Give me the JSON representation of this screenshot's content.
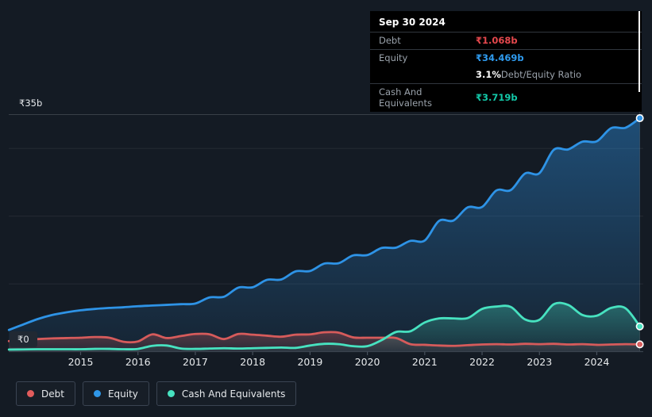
{
  "y_axis": {
    "top_label": "₹35b",
    "zero_label": "₹0"
  },
  "x_axis": {
    "years": [
      "2015",
      "2016",
      "2017",
      "2018",
      "2019",
      "2020",
      "2021",
      "2022",
      "2023",
      "2024"
    ]
  },
  "tooltip": {
    "date": "Sep 30 2024",
    "debt_label": "Debt",
    "debt_value": "₹1.068b",
    "debt_color": "#e5484d",
    "equity_label": "Equity",
    "equity_value": "₹34.469b",
    "equity_color": "#2f9bef",
    "ratio_value": "3.1%",
    "ratio_color": "#ffffff",
    "ratio_label": "Debt/Equity Ratio",
    "cash_label": "Cash And Equivalents",
    "cash_value": "₹3.719b",
    "cash_color": "#13c8a8"
  },
  "legend": [
    {
      "label": "Debt",
      "color": "#e25c5c"
    },
    {
      "label": "Equity",
      "color": "#2f97e8"
    },
    {
      "label": "Cash And Equivalents",
      "color": "#47e2c0"
    }
  ],
  "chart_data": {
    "type": "area",
    "unit": "₹ billions",
    "x_range": [
      2013.75,
      2024.75
    ],
    "ylim": [
      0,
      35
    ],
    "gridline_values": [
      10,
      20,
      30,
      35
    ],
    "grid": true,
    "legend_position": "bottom-left",
    "x": [
      2013.75,
      2014.0,
      2014.25,
      2014.5,
      2014.75,
      2015.0,
      2015.25,
      2015.5,
      2015.75,
      2016.0,
      2016.25,
      2016.5,
      2016.75,
      2017.0,
      2017.25,
      2017.5,
      2017.75,
      2018.0,
      2018.25,
      2018.5,
      2018.75,
      2019.0,
      2019.25,
      2019.5,
      2019.75,
      2020.0,
      2020.25,
      2020.5,
      2020.75,
      2021.0,
      2021.25,
      2021.5,
      2021.75,
      2022.0,
      2022.25,
      2022.5,
      2022.75,
      2023.0,
      2023.25,
      2023.5,
      2023.75,
      2024.0,
      2024.25,
      2024.5,
      2024.75
    ],
    "series": [
      {
        "name": "Equity",
        "key": "equity",
        "color": "#2e93e6",
        "values": [
          3.2,
          4.0,
          4.8,
          5.4,
          5.8,
          6.1,
          6.3,
          6.45,
          6.55,
          6.7,
          6.8,
          6.9,
          7.0,
          7.1,
          8.0,
          8.1,
          9.45,
          9.5,
          10.6,
          10.65,
          11.85,
          11.9,
          13.0,
          13.05,
          14.2,
          14.25,
          15.3,
          15.35,
          16.35,
          16.4,
          19.3,
          19.35,
          21.3,
          21.35,
          23.8,
          23.85,
          26.3,
          26.35,
          29.8,
          29.85,
          31.0,
          31.05,
          33.0,
          33.05,
          34.469
        ]
      },
      {
        "name": "Debt",
        "key": "debt",
        "color": "#d65b5b",
        "values": [
          1.55,
          1.7,
          1.85,
          1.95,
          2.0,
          2.05,
          2.15,
          2.05,
          1.45,
          1.5,
          2.55,
          2.0,
          2.3,
          2.6,
          2.55,
          1.85,
          2.6,
          2.5,
          2.35,
          2.2,
          2.5,
          2.55,
          2.85,
          2.8,
          2.1,
          2.05,
          2.05,
          2.0,
          1.1,
          1.0,
          0.9,
          0.85,
          0.95,
          1.05,
          1.1,
          1.05,
          1.15,
          1.1,
          1.15,
          1.05,
          1.1,
          1.0,
          1.05,
          1.1,
          1.068
        ]
      },
      {
        "name": "Cash And Equivalents",
        "key": "cash",
        "color": "#47e2c0",
        "values": [
          0.3,
          0.32,
          0.35,
          0.35,
          0.35,
          0.35,
          0.4,
          0.4,
          0.35,
          0.4,
          0.85,
          0.9,
          0.45,
          0.4,
          0.45,
          0.5,
          0.45,
          0.5,
          0.55,
          0.6,
          0.55,
          0.9,
          1.15,
          1.1,
          0.8,
          0.8,
          1.7,
          2.9,
          3.0,
          4.3,
          4.9,
          4.9,
          4.95,
          6.3,
          6.65,
          6.6,
          4.75,
          4.7,
          7.0,
          6.9,
          5.4,
          5.3,
          6.45,
          6.4,
          3.719
        ]
      }
    ]
  }
}
